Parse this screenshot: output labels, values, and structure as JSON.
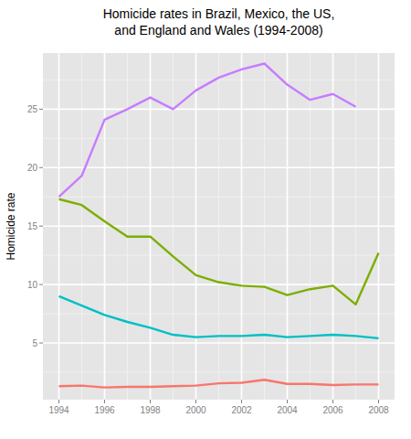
{
  "chart_data": {
    "type": "line",
    "title": "Homicide rates in Brazil, Mexico, the US,\nand England and Wales (1994-2008)",
    "y_label": "Homicide rate",
    "x": [
      1994,
      1995,
      1996,
      1997,
      1998,
      1999,
      2000,
      2001,
      2002,
      2003,
      2004,
      2005,
      2006,
      2007,
      2008
    ],
    "series": [
      {
        "color": "#C77CFF",
        "values": [
          17.5,
          19.3,
          24.1,
          25.0,
          26.0,
          25.0,
          26.6,
          27.7,
          28.4,
          28.9,
          27.1,
          25.8,
          26.3,
          25.2,
          null
        ]
      },
      {
        "color": "#7CAE00",
        "values": [
          17.3,
          16.8,
          15.4,
          14.1,
          14.1,
          12.4,
          10.8,
          10.2,
          9.9,
          9.8,
          9.1,
          9.6,
          9.9,
          8.3,
          12.7
        ]
      },
      {
        "color": "#00BFC4",
        "values": [
          9.0,
          8.2,
          7.4,
          6.8,
          6.3,
          5.7,
          5.5,
          5.6,
          5.6,
          5.7,
          5.5,
          5.6,
          5.7,
          5.6,
          5.4
        ]
      },
      {
        "color": "#F8766D",
        "values": [
          1.3,
          1.35,
          1.2,
          1.25,
          1.25,
          1.3,
          1.35,
          1.55,
          1.6,
          1.85,
          1.5,
          1.5,
          1.4,
          1.45,
          1.45
        ]
      }
    ],
    "xlim": [
      1993.3,
      2008.7
    ],
    "xticks": [
      1994,
      1996,
      1998,
      2000,
      2002,
      2004,
      2006,
      2008
    ],
    "ylim": [
      0.15,
      29.8
    ],
    "yticks": [
      5,
      10,
      15,
      20,
      25
    ],
    "grid": true
  }
}
